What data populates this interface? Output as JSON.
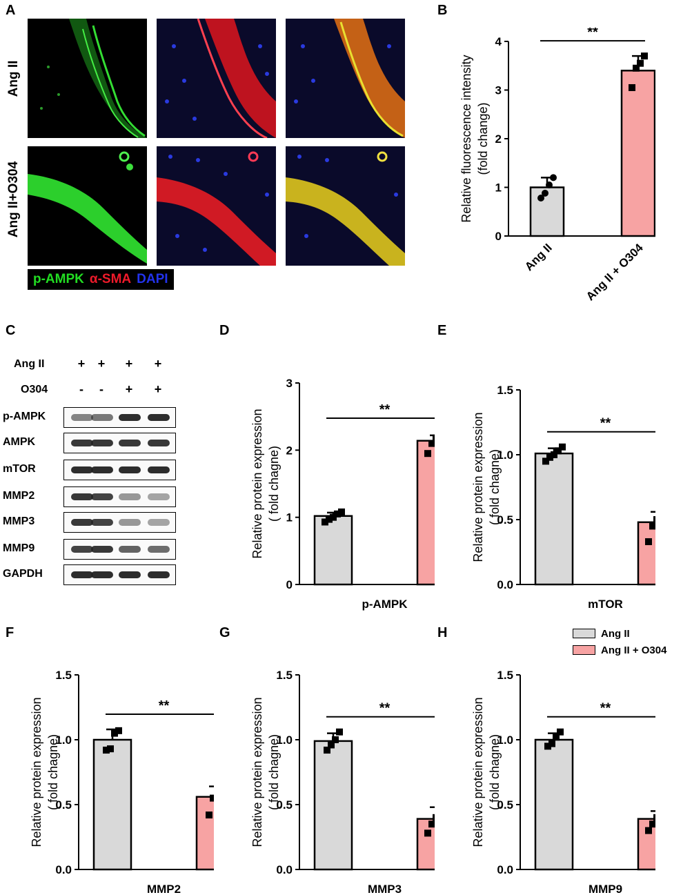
{
  "panel_letters": {
    "A": "A",
    "B": "B",
    "C": "C",
    "D": "D",
    "E": "E",
    "F": "F",
    "G": "G",
    "H": "H"
  },
  "microscopy": {
    "row_labels": [
      "Ang II",
      "Ang II+O304"
    ],
    "stain_legend": [
      {
        "text": "p-AMPK",
        "color": "#22dd22"
      },
      {
        "text": "α-SMA",
        "color": "#ee1a2a"
      },
      {
        "text": "DAPI",
        "color": "#2233ee"
      }
    ]
  },
  "western_blot": {
    "header_rows": [
      {
        "label": "Ang II",
        "signs": [
          "+",
          "+",
          "+",
          "+"
        ]
      },
      {
        "label": "O304",
        "signs": [
          "-",
          "-",
          "+",
          "+"
        ]
      }
    ],
    "blots": [
      {
        "label": "p-AMPK",
        "intensities": [
          0.55,
          0.6,
          0.95,
          0.95
        ]
      },
      {
        "label": "AMPK",
        "intensities": [
          0.9,
          0.9,
          0.9,
          0.9
        ]
      },
      {
        "label": "mTOR",
        "intensities": [
          0.95,
          0.95,
          0.95,
          0.95
        ]
      },
      {
        "label": "MMP2",
        "intensities": [
          0.9,
          0.85,
          0.45,
          0.4
        ]
      },
      {
        "label": "MMP3",
        "intensities": [
          0.9,
          0.85,
          0.45,
          0.4
        ]
      },
      {
        "label": "MMP9",
        "intensities": [
          0.85,
          0.9,
          0.7,
          0.65
        ]
      },
      {
        "label": "GAPDH",
        "intensities": [
          0.95,
          0.95,
          0.95,
          0.95
        ]
      }
    ]
  },
  "colors": {
    "ang_ii": "#d9d9d9",
    "ang_ii_o304": "#f7a3a3"
  },
  "legend": [
    "Ang II",
    "Ang II + O304"
  ],
  "chart_data": [
    {
      "panel": "B",
      "type": "bar",
      "ylabel": "Relative fluorescence intensity (fold change)",
      "ylabel_lines": [
        "Relative fluorescence intensity",
        "(fold change)"
      ],
      "xlabel": "",
      "categories": [
        "Ang II",
        "Ang II + O304"
      ],
      "values": [
        1.0,
        3.4
      ],
      "errors": [
        0.2,
        0.3
      ],
      "points": [
        [
          0.78,
          0.88,
          1.05,
          1.2
        ],
        [
          3.05,
          3.45,
          3.55,
          3.7
        ]
      ],
      "ylim": [
        0,
        4
      ],
      "yticks": [
        "0",
        "1",
        "2",
        "3",
        "4"
      ],
      "significance": "**",
      "xtick_labels_rotated": true
    },
    {
      "panel": "D",
      "type": "bar",
      "ylabel": "Relative protein expression ( fold chagne)",
      "ylabel_lines": [
        "Relative protein expression",
        "( fold chagne)"
      ],
      "xlabel": "p-AMPK",
      "categories": [
        "Ang II",
        "Ang II + O304"
      ],
      "values": [
        1.02,
        2.14
      ],
      "errors": [
        0.05,
        0.08
      ],
      "points": [
        [
          0.93,
          0.97,
          1.0,
          1.05,
          1.08
        ],
        [
          1.95,
          2.1,
          2.18,
          2.2,
          2.25
        ]
      ],
      "ylim": [
        0,
        3
      ],
      "yticks": [
        "0",
        "1",
        "2",
        "3"
      ],
      "significance": "**"
    },
    {
      "panel": "E",
      "type": "bar",
      "ylabel": "Relative protein expression ( fold chagne)",
      "ylabel_lines": [
        "Relative protein expression",
        "( fold chagne)"
      ],
      "xlabel": "mTOR",
      "categories": [
        "Ang II",
        "Ang II + O304"
      ],
      "values": [
        1.01,
        0.48
      ],
      "errors": [
        0.04,
        0.08
      ],
      "points": [
        [
          0.95,
          0.98,
          1.0,
          1.03,
          1.06
        ],
        [
          0.33,
          0.45,
          0.5,
          0.53,
          0.6
        ]
      ],
      "ylim": [
        0,
        1.5
      ],
      "yticks": [
        "0.0",
        "0.5",
        "1.0",
        "1.5"
      ],
      "significance": "**"
    },
    {
      "panel": "F",
      "type": "bar",
      "ylabel": "Relative protein expression ( fold chagne)",
      "ylabel_lines": [
        "Relative protein expression",
        "( fold chagne)"
      ],
      "xlabel": "MMP2",
      "categories": [
        "Ang II",
        "Ang II + O304"
      ],
      "values": [
        1.0,
        0.56
      ],
      "errors": [
        0.08,
        0.08
      ],
      "points": [
        [
          0.92,
          0.93,
          1.05,
          1.07
        ],
        [
          0.42,
          0.55,
          0.6,
          0.63
        ]
      ],
      "ylim": [
        0,
        1.5
      ],
      "yticks": [
        "0.0",
        "0.5",
        "1.0",
        "1.5"
      ],
      "significance": "**"
    },
    {
      "panel": "G",
      "type": "bar",
      "ylabel": "Relative protein expression ( fold chagne)",
      "ylabel_lines": [
        "Relative protein expression",
        "( fold chagne)"
      ],
      "xlabel": "MMP3",
      "categories": [
        "Ang II",
        "Ang II + O304"
      ],
      "values": [
        0.99,
        0.39
      ],
      "errors": [
        0.06,
        0.09
      ],
      "points": [
        [
          0.92,
          0.96,
          1.0,
          1.06
        ],
        [
          0.28,
          0.35,
          0.4,
          0.43,
          0.55
        ]
      ],
      "ylim": [
        0,
        1.5
      ],
      "yticks": [
        "0.0",
        "0.5",
        "1.0",
        "1.5"
      ],
      "significance": "**"
    },
    {
      "panel": "H",
      "type": "bar",
      "ylabel": "Relative protein expression ( fold chagne)",
      "ylabel_lines": [
        "Relative protein expression",
        "( fold chagne)"
      ],
      "xlabel": "MMP9",
      "categories": [
        "Ang II",
        "Ang II + O304"
      ],
      "values": [
        1.0,
        0.39
      ],
      "errors": [
        0.05,
        0.06
      ],
      "points": [
        [
          0.95,
          0.97,
          1.02,
          1.06
        ],
        [
          0.3,
          0.35,
          0.4,
          0.44,
          0.46
        ]
      ],
      "ylim": [
        0,
        1.5
      ],
      "yticks": [
        "0.0",
        "0.5",
        "1.0",
        "1.5"
      ],
      "significance": "**"
    }
  ]
}
